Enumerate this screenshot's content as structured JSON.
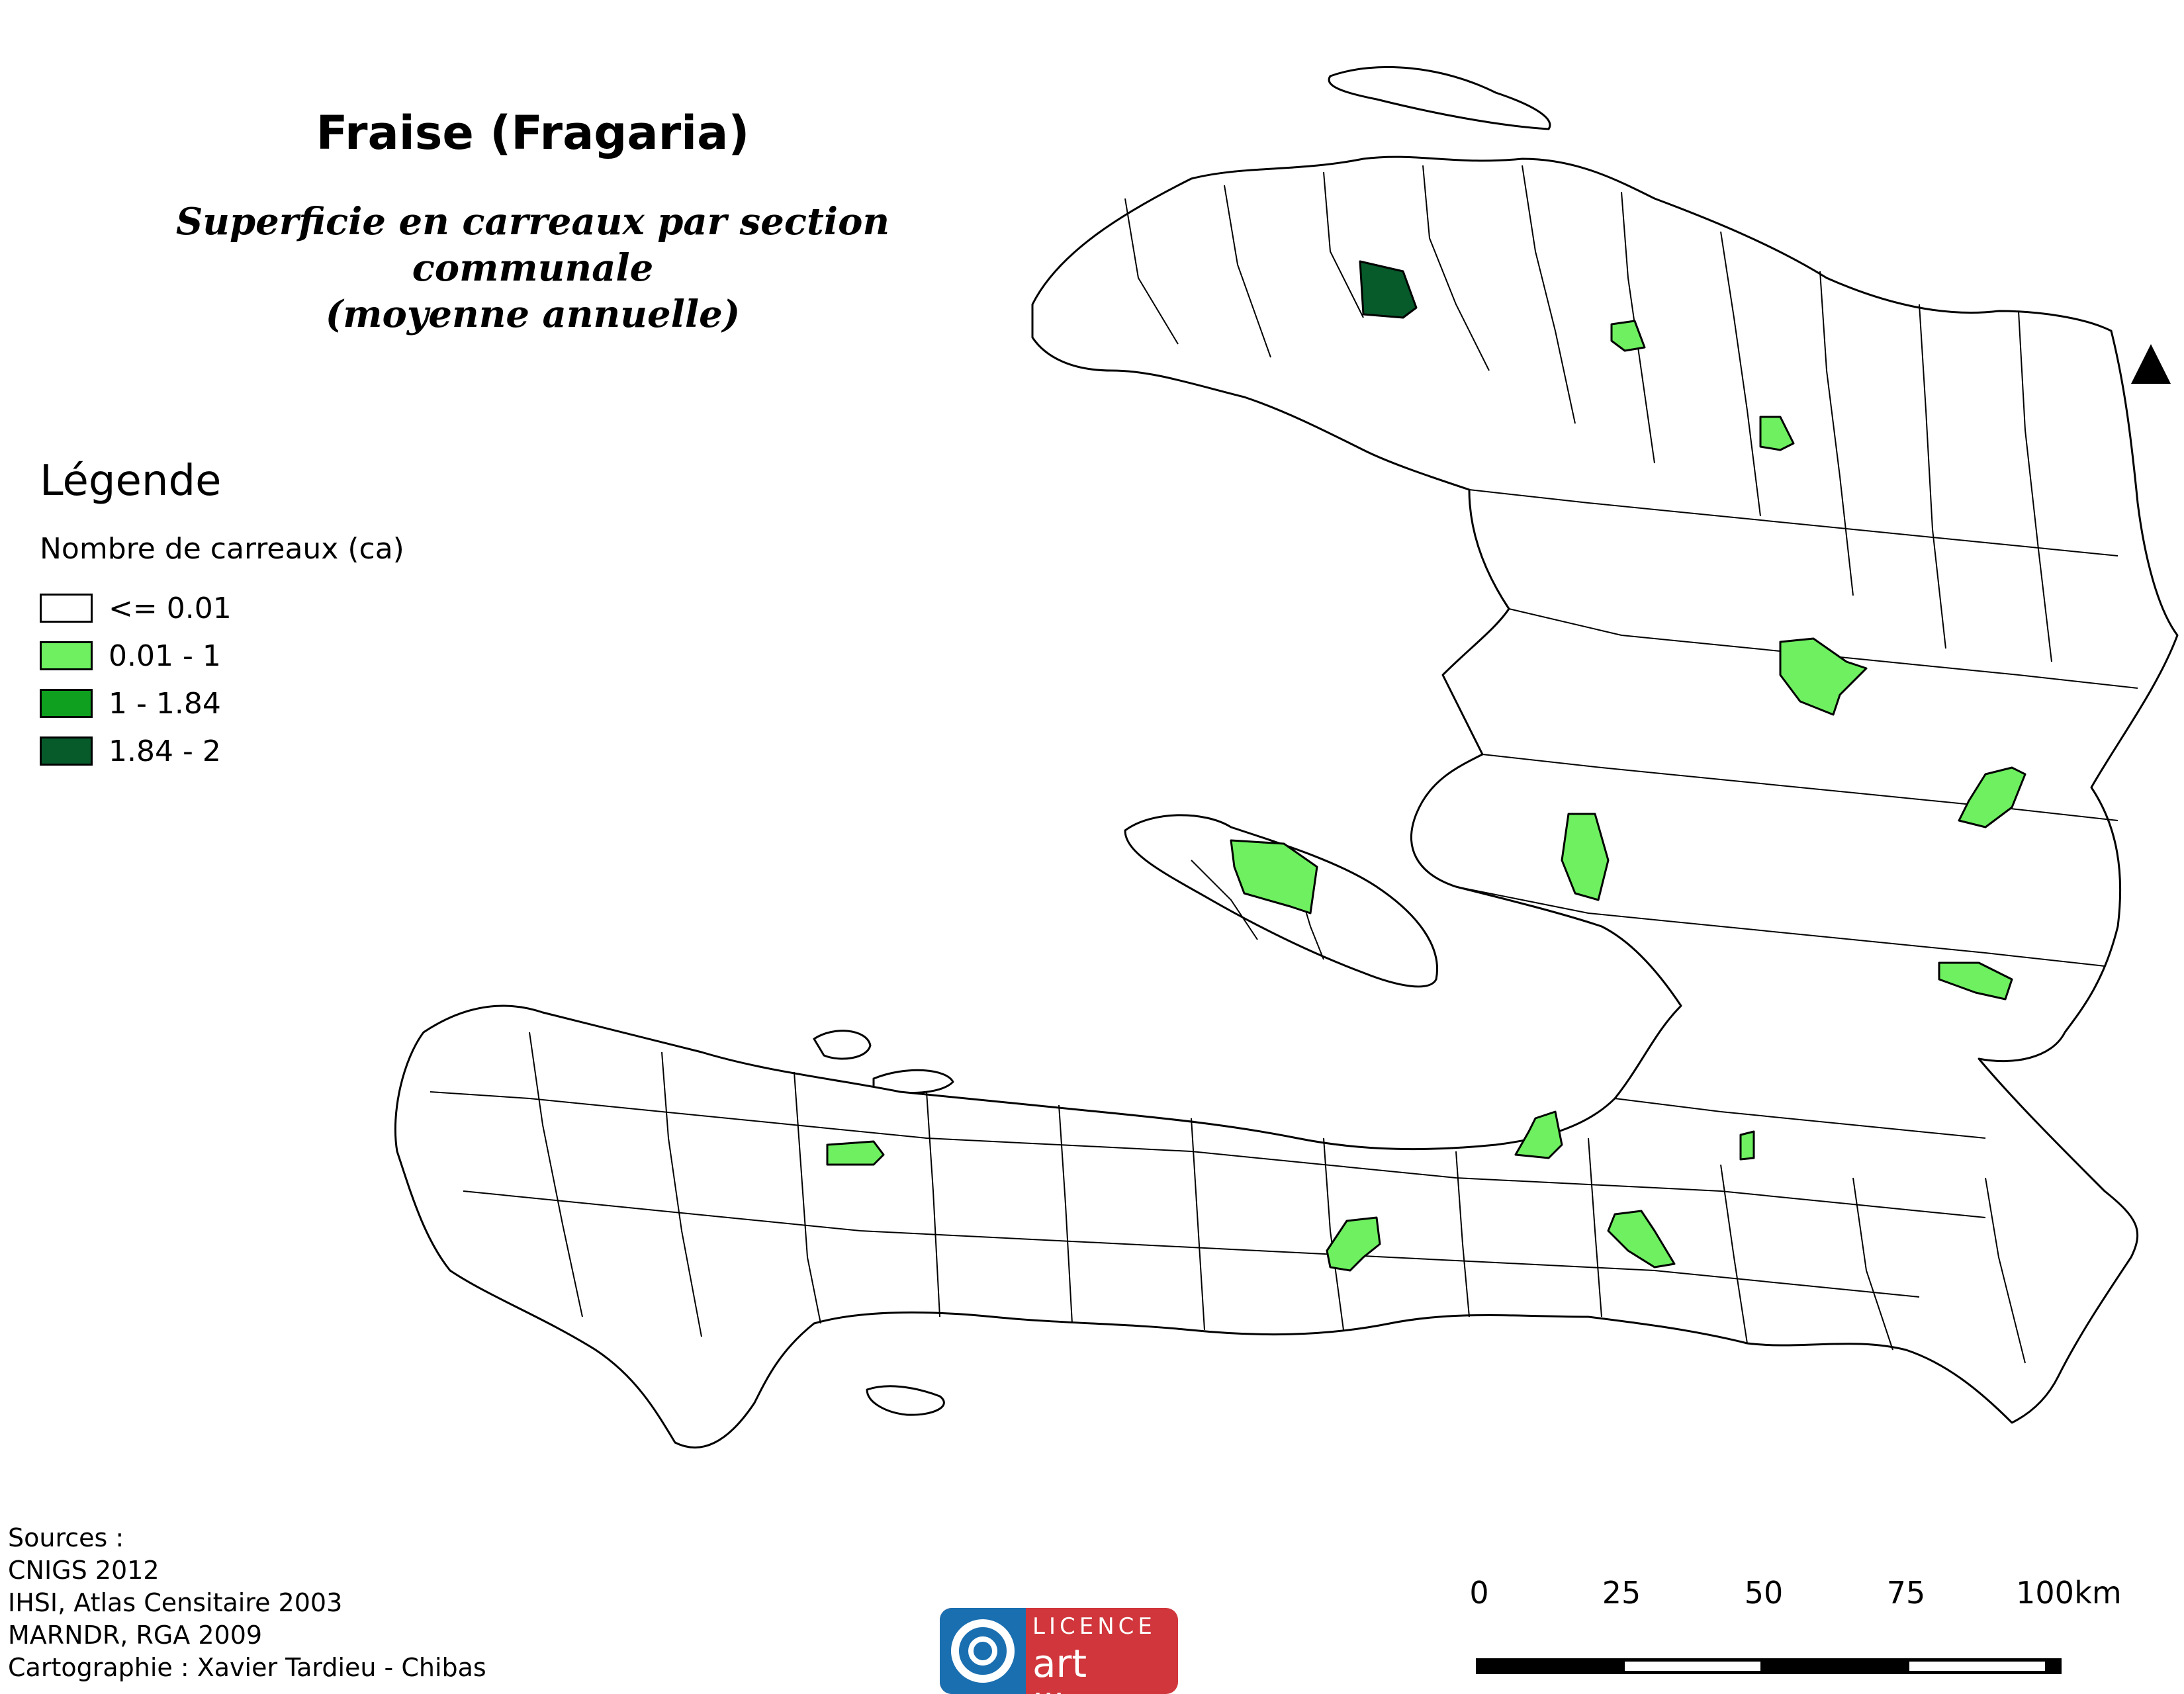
{
  "map": {
    "title": "Fraise (Fragaria)",
    "subtitle_line1": "Superficie en carreaux par section communale",
    "subtitle_line2": "(moyenne annuelle)"
  },
  "legend": {
    "title": "Légende",
    "subtitle": "Nombre de carreaux (ca)",
    "classes": [
      {
        "label": "<= 0.01",
        "color": "#ffffff"
      },
      {
        "label": "0.01 - 1",
        "color": "#6ef060"
      },
      {
        "label": "1 - 1.84",
        "color": "#0ea01e"
      },
      {
        "label": "1.84 - 2",
        "color": "#075a2a"
      }
    ]
  },
  "sources": {
    "heading": "Sources :",
    "lines": [
      "CNIGS 2012",
      "IHSI, Atlas Censitaire 2003",
      "MARNDR, RGA 2009",
      "Cartographie : Xavier Tardieu - Chibas"
    ]
  },
  "licence": {
    "top": "LICENCE",
    "bottom": "art libre"
  },
  "scale_bar": {
    "labels": [
      "0",
      "25",
      "50",
      "75",
      "100"
    ],
    "unit": "km"
  },
  "north_arrow": {
    "icon": "north-arrow-icon"
  }
}
